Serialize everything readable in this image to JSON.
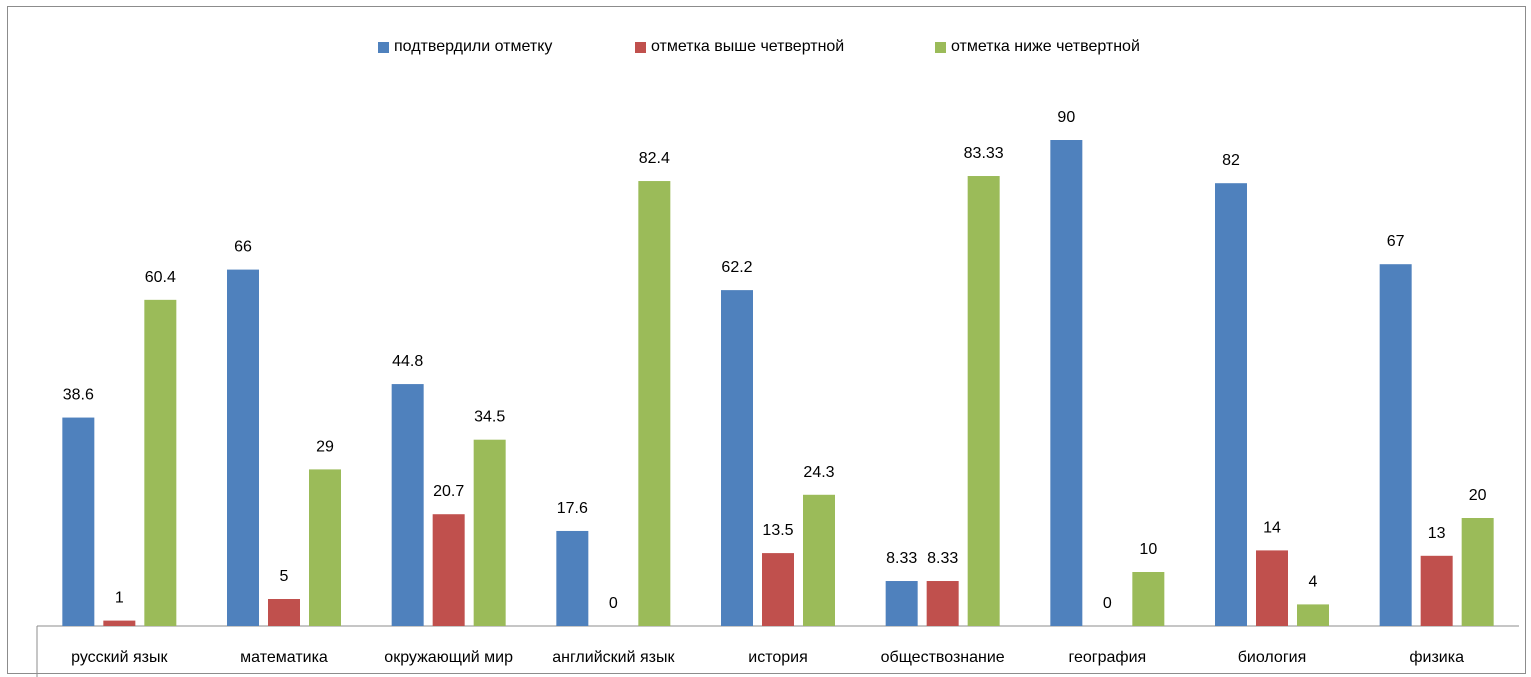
{
  "chart_data": {
    "type": "bar",
    "categories": [
      "русский язык",
      "математика",
      "окружающий мир",
      "английский язык",
      "история",
      "обществознание",
      "география",
      "биология",
      "физика"
    ],
    "series": [
      {
        "name": "подтвердили  отметку",
        "color": "#4f81bd",
        "values": [
          38.6,
          66,
          44.8,
          17.6,
          62.2,
          8.33,
          90,
          82,
          67
        ],
        "labels": [
          "38.6",
          "66",
          "44.8",
          "17.6",
          "62.2",
          "8.33",
          "90",
          "82",
          "67"
        ]
      },
      {
        "name": "отметка  выше четвертной",
        "color": "#c0504d",
        "values": [
          1,
          5,
          20.7,
          0,
          13.5,
          8.33,
          0,
          14,
          13
        ],
        "labels": [
          "1",
          "5",
          "20.7",
          "0",
          "13.5",
          "8.33",
          "0",
          "14",
          "13"
        ]
      },
      {
        "name": "отметка  ниже четвертной",
        "color": "#9bbb59",
        "values": [
          60.4,
          29,
          34.5,
          82.4,
          24.3,
          83.33,
          10,
          4,
          20
        ],
        "labels": [
          "60.4",
          "29",
          "34.5",
          "82.4",
          "24.3",
          "83.33",
          "10",
          "4",
          "20"
        ]
      }
    ],
    "ylim": [
      0,
      100
    ],
    "grid": false,
    "legend_position": "top"
  }
}
